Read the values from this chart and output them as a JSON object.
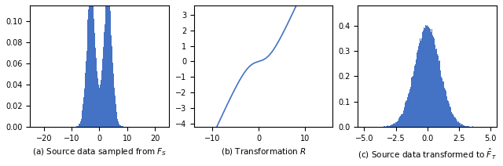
{
  "fig_width": 6.4,
  "fig_height": 2.12,
  "dpi": 100,
  "bar_color": "#4472c4",
  "line_color": "#4472c4",
  "panel_a": {
    "title": "(a) Source data sampled from $F_S$",
    "xlim": [
      -25,
      25
    ],
    "ylim": [
      0,
      0.115
    ],
    "yticks": [
      0.0,
      0.02,
      0.04,
      0.06,
      0.08,
      0.1
    ],
    "xticks": [
      -20,
      -10,
      0,
      10,
      20
    ],
    "n_bins": 200,
    "peak1_mean": -3.0,
    "peak1_std": 1.5,
    "peak2_mean": 3.0,
    "peak2_std": 1.5,
    "n_samples": 100000
  },
  "panel_b": {
    "title": "(b) Transformation $R$",
    "xlim": [
      -14,
      16
    ],
    "ylim": [
      -4.2,
      3.6
    ],
    "yticks": [
      -4,
      -3,
      -2,
      -1,
      0,
      1,
      2,
      3
    ],
    "xticks": [
      -10,
      0,
      10
    ]
  },
  "panel_c": {
    "title": "(c) Source data transformed to $\\hat{F}_T$",
    "xlim": [
      -5.5,
      5.5
    ],
    "ylim": [
      0,
      0.48
    ],
    "yticks": [
      0.0,
      0.1,
      0.2,
      0.3,
      0.4
    ],
    "xticks": [
      -5.0,
      -2.5,
      0.0,
      2.5,
      5.0
    ],
    "n_bins": 200,
    "n_samples": 100000
  }
}
